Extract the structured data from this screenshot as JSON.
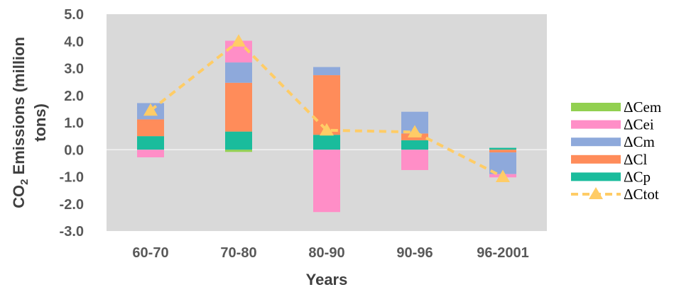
{
  "chart_data": {
    "type": "bar",
    "stacked": true,
    "categories": [
      "60-70",
      "70-80",
      "80-90",
      "90-96",
      "96-2001"
    ],
    "xlabel": "Years",
    "ylabel_main": "CO",
    "ylabel_sub": "2",
    "ylabel_rest": " Emissions (million",
    "ylabel_line2": "tons)",
    "ylim": [
      -3.0,
      5.0
    ],
    "yticks": [
      "-3.0",
      "-2.0",
      "-1.0",
      "0.0",
      "1.0",
      "2.0",
      "3.0",
      "4.0",
      "5.0"
    ],
    "yticks_values": [
      -3,
      -2,
      -1,
      0,
      1,
      2,
      3,
      4,
      5
    ],
    "grid": false,
    "plot_background": "#d9d9d9",
    "legend_position": "right",
    "series": [
      {
        "name": "ΔCem",
        "color": "#92d050",
        "values": [
          0.0,
          -0.08,
          0.0,
          0.0,
          0.0
        ]
      },
      {
        "name": "ΔCei",
        "color": "#ff8ec7",
        "values": [
          -0.28,
          0.8,
          -2.3,
          -0.75,
          -0.12
        ]
      },
      {
        "name": "ΔCm",
        "color": "#8ea9db",
        "values": [
          0.6,
          0.75,
          0.3,
          0.8,
          -0.8
        ]
      },
      {
        "name": "ΔCl",
        "color": "#ff8c5a",
        "values": [
          0.62,
          1.8,
          2.2,
          0.25,
          -0.1
        ]
      },
      {
        "name": "ΔCp",
        "color": "#1abc9c",
        "values": [
          0.5,
          0.67,
          0.55,
          0.35,
          0.07
        ]
      }
    ],
    "line_series": {
      "name": "ΔCtot",
      "color": "#ffcc66",
      "values": [
        1.45,
        4.0,
        0.72,
        0.65,
        -1.0
      ]
    }
  }
}
